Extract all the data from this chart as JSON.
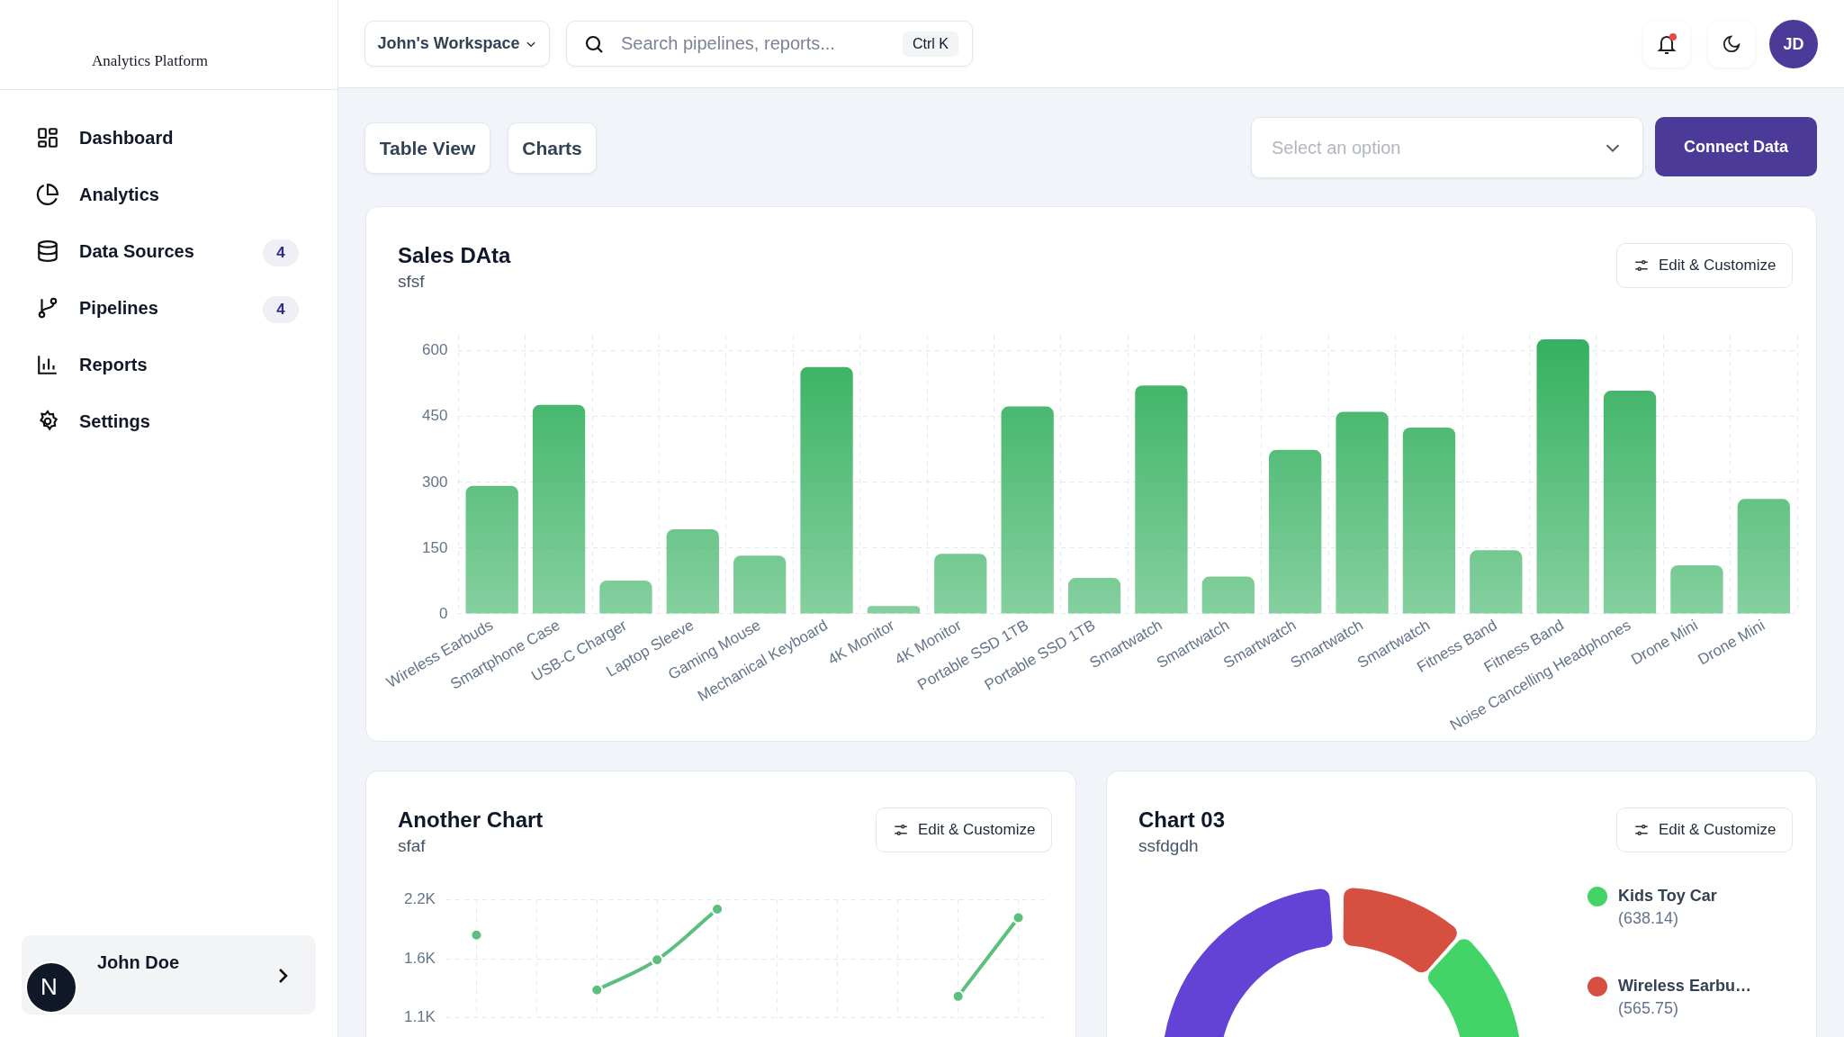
{
  "chart_data": [
    {
      "type": "bar",
      "title": "Sales DAta",
      "subtitle": "sfsf",
      "categories": [
        "Wireless Earbuds",
        "Smartphone Case",
        "USB-C Charger",
        "Laptop Sleeve",
        "Gaming Mouse",
        "Mechanical Keyboard",
        "4K Monitor",
        "4K Monitor",
        "Portable SSD 1TB",
        "Portable SSD 1TB",
        "Smartwatch",
        "Smartwatch",
        "Smartwatch",
        "Smartwatch",
        "Smartwatch",
        "Fitness Band",
        "Fitness Band",
        "Noise Cancelling Headphones",
        "Drone Mini",
        "Drone Mini"
      ],
      "values": [
        292,
        477,
        76,
        193,
        133,
        563,
        18,
        137,
        473,
        82,
        521,
        85,
        374,
        461,
        425,
        145,
        626,
        509,
        111,
        262
      ],
      "color": "#34b05f",
      "ylim": [
        0,
        636
      ],
      "yticks": [
        0,
        150,
        300,
        450,
        600
      ],
      "grid": true,
      "legend": false
    },
    {
      "type": "line",
      "title": "Another Chart",
      "subtitle": "sfaf",
      "categories": [
        null,
        null,
        null,
        null,
        null,
        null,
        null,
        null,
        null,
        null
      ],
      "series": [
        {
          "color": "#5cbf7c",
          "values": [
            1870,
            null,
            1360,
            1640,
            2110,
            null,
            null,
            null,
            1300,
            2030
          ]
        }
      ],
      "ylim": [
        1100,
        2200
      ],
      "yticks": [
        {
          "value": 1100,
          "label": "1.1K"
        },
        {
          "value": 1650,
          "label": "1.6K"
        },
        {
          "value": 2200,
          "label": "2.2K"
        }
      ],
      "grid": true,
      "legend": false,
      "tick_labels": "y",
      "marker": "circle",
      "line_style": "solid"
    },
    {
      "type": "donut",
      "title": "Chart 03",
      "subtitle": "ssfdgdh",
      "categories": [
        "Wireless Earbu…",
        "Kids Toy Car",
        null
      ],
      "values": [
        565.75,
        638.14,
        3650
      ],
      "value_labels": [
        "(565.75)",
        "(638.14)",
        null
      ],
      "colors": [
        "#d65041",
        "#42d466",
        "#6342d6"
      ],
      "legend": "right"
    },
    {
      "type": "other",
      "annotations": [
        "Analytics Platform",
        "Dashboard",
        "Analytics",
        "Data Sources",
        "4",
        "Pipelines",
        "4",
        "Reports",
        "Settings",
        "N",
        "John Doe",
        "John's Workspace",
        "Search pipelines, reports...",
        "Ctrl K",
        "JD",
        "Table View",
        "Charts",
        "Select an option",
        "Connect Data",
        "Edit & Customize",
        "Edit & Customize",
        "Edit & Customize"
      ]
    }
  ]
}
